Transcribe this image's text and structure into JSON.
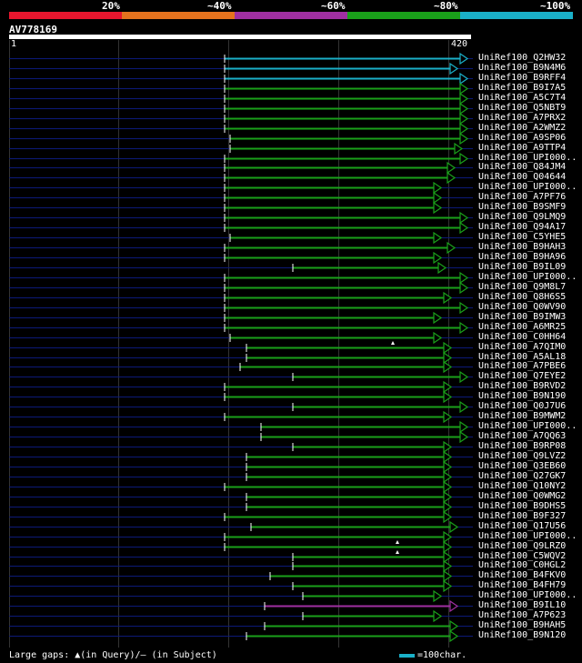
{
  "legend": [
    {
      "label": "20%",
      "color": "#e8162e"
    },
    {
      "label": "~40%",
      "color": "#e6731e"
    },
    {
      "label": "~60%",
      "color": "#a02fa2"
    },
    {
      "label": "~80%",
      "color": "#1aa01a"
    },
    {
      "label": "~100%",
      "color": "#1ab0c8"
    }
  ],
  "query": {
    "id": "AV778169",
    "start": "1",
    "end": "420"
  },
  "hits": [
    {
      "name": "UniRef100_Q2HW32",
      "c": "cyan"
    },
    {
      "name": "UniRef100_B9N4M6",
      "c": "cyan"
    },
    {
      "name": "UniRef100_B9RFF4",
      "c": "cyan"
    },
    {
      "name": "UniRef100_B9I7A5",
      "c": "green"
    },
    {
      "name": "UniRef100_A5C7T4",
      "c": "green"
    },
    {
      "name": "UniRef100_Q5NBT9",
      "c": "green"
    },
    {
      "name": "UniRef100_A7PRX2",
      "c": "green"
    },
    {
      "name": "UniRef100_A2WMZ2",
      "c": "green"
    },
    {
      "name": "UniRef100_A9SP06",
      "c": "green"
    },
    {
      "name": "UniRef100_A9TTP4",
      "c": "green"
    },
    {
      "name": "UniRef100_UPI000..",
      "c": "green"
    },
    {
      "name": "UniRef100_Q84JM4",
      "c": "green"
    },
    {
      "name": "UniRef100_Q04644",
      "c": "green"
    },
    {
      "name": "UniRef100_UPI000..",
      "c": "green"
    },
    {
      "name": "UniRef100_A7PF76",
      "c": "green"
    },
    {
      "name": "UniRef100_B9SMF9",
      "c": "green"
    },
    {
      "name": "UniRef100_Q9LMQ9",
      "c": "green"
    },
    {
      "name": "UniRef100_Q94A17",
      "c": "green"
    },
    {
      "name": "UniRef100_C5YHE5",
      "c": "green"
    },
    {
      "name": "UniRef100_B9HAH3",
      "c": "green"
    },
    {
      "name": "UniRef100_B9HA96",
      "c": "green"
    },
    {
      "name": "UniRef100_B9IL09",
      "c": "green"
    },
    {
      "name": "UniRef100_UPI000..",
      "c": "green"
    },
    {
      "name": "UniRef100_Q9M8L7",
      "c": "green"
    },
    {
      "name": "UniRef100_Q8H6S5",
      "c": "green"
    },
    {
      "name": "UniRef100_Q0WV90",
      "c": "green"
    },
    {
      "name": "UniRef100_B9IMW3",
      "c": "green"
    },
    {
      "name": "UniRef100_A6MR25",
      "c": "green"
    },
    {
      "name": "UniRef100_C0HH64",
      "c": "green"
    },
    {
      "name": "UniRef100_A7QIM0",
      "c": "green"
    },
    {
      "name": "UniRef100_A5AL18",
      "c": "green"
    },
    {
      "name": "UniRef100_A7PBE6",
      "c": "green"
    },
    {
      "name": "UniRef100_Q7EYE2",
      "c": "green"
    },
    {
      "name": "UniRef100_B9RVD2",
      "c": "green"
    },
    {
      "name": "UniRef100_B9N190",
      "c": "green"
    },
    {
      "name": "UniRef100_Q0J7U6",
      "c": "green"
    },
    {
      "name": "UniRef100_B9MWM2",
      "c": "green"
    },
    {
      "name": "UniRef100_UPI000..",
      "c": "green"
    },
    {
      "name": "UniRef100_A7QQ63",
      "c": "green"
    },
    {
      "name": "UniRef100_B9RP08",
      "c": "green"
    },
    {
      "name": "UniRef100_Q9LVZ2",
      "c": "green"
    },
    {
      "name": "UniRef100_Q3EB60",
      "c": "green"
    },
    {
      "name": "UniRef100_Q27GK7",
      "c": "green"
    },
    {
      "name": "UniRef100_Q10NY2",
      "c": "green"
    },
    {
      "name": "UniRef100_Q0WMG2",
      "c": "green"
    },
    {
      "name": "UniRef100_B9DHS5",
      "c": "green"
    },
    {
      "name": "UniRef100_B9F327",
      "c": "green"
    },
    {
      "name": "UniRef100_Q17U56",
      "c": "green"
    },
    {
      "name": "UniRef100_UPI000..",
      "c": "green"
    },
    {
      "name": "UniRef100_Q9LRZ0",
      "c": "green"
    },
    {
      "name": "UniRef100_C5WQV2",
      "c": "green"
    },
    {
      "name": "UniRef100_C0HGL2",
      "c": "green"
    },
    {
      "name": "UniRef100_B4FKV0",
      "c": "green"
    },
    {
      "name": "UniRef100_B4FH79",
      "c": "green"
    },
    {
      "name": "UniRef100_UPI000..",
      "c": "green"
    },
    {
      "name": "UniRef100_B9IL10",
      "c": "purple"
    },
    {
      "name": "UniRef100_A7P623",
      "c": "green"
    },
    {
      "name": "UniRef100_B9HAH5",
      "c": "green"
    },
    {
      "name": "UniRef100_B9N120",
      "c": "green"
    }
  ],
  "footer": {
    "gaps_label": "Large gaps: ▲(in Query)/– (in Subject)",
    "scale_label": "=100char."
  }
}
